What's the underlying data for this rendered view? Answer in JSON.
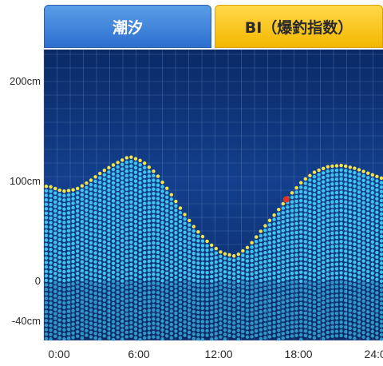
{
  "tabs": [
    {
      "label": "潮汐",
      "active": true
    },
    {
      "label": "BI（爆釣指数）",
      "active": false
    }
  ],
  "chart_data": {
    "type": "area",
    "x_unit": "hour",
    "x_range": [
      0,
      25
    ],
    "y_unit": "cm",
    "ylim": [
      -40,
      220
    ],
    "y_ticks": [
      200,
      100,
      0,
      -40
    ],
    "y_tick_labels": [
      "200cm",
      "100cm",
      "0",
      "-40cm"
    ],
    "x_ticks": [
      0,
      6,
      12,
      18,
      24
    ],
    "x_tick_labels": [
      "0:00",
      "6:00",
      "12:00",
      "18:00",
      "24:00"
    ],
    "grid": true,
    "series": [
      {
        "x": [
          0,
          1,
          2,
          3,
          4,
          5,
          6,
          7,
          8,
          9,
          10,
          11,
          12,
          13,
          14,
          15,
          16,
          17,
          18,
          19,
          20,
          21,
          22,
          23,
          24,
          25
        ],
        "values": [
          95,
          90,
          92,
          100,
          110,
          118,
          125,
          120,
          108,
          90,
          70,
          52,
          38,
          28,
          25,
          35,
          52,
          68,
          85,
          100,
          110,
          115,
          116,
          113,
          108,
          103
        ]
      }
    ],
    "current_marker": {
      "x": 17.8,
      "y": 82
    },
    "colors": {
      "background": "#0a2a66",
      "dot": "#3ec4ef",
      "surface_dot": "#f4e54a",
      "marker": "#e83020",
      "grid": "#6c8ac4"
    }
  }
}
